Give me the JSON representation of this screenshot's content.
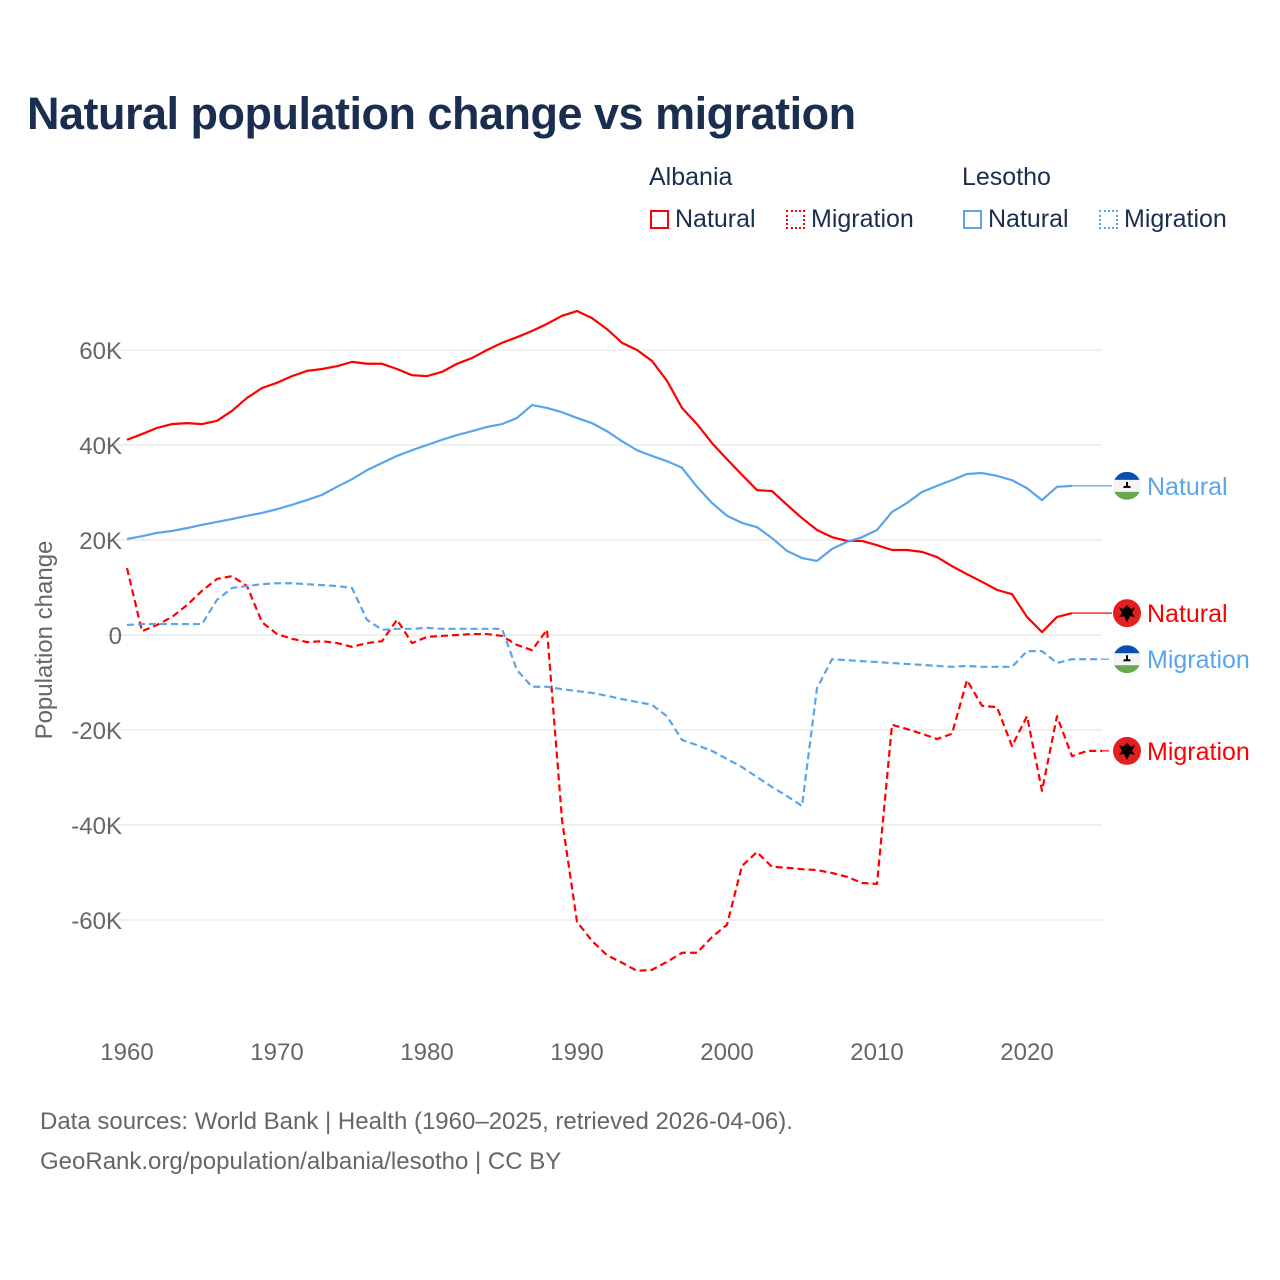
{
  "title": "Natural population change vs migration",
  "legend": {
    "groups": [
      {
        "name": "Albania",
        "items": [
          {
            "label": "Natural",
            "style": "solid",
            "color": "#ff0000"
          },
          {
            "label": "Migration",
            "style": "dotted",
            "color": "#ff0000"
          }
        ]
      },
      {
        "name": "Lesotho",
        "items": [
          {
            "label": "Natural",
            "style": "solid",
            "color": "#5aa5ea"
          },
          {
            "label": "Migration",
            "style": "dotted",
            "color": "#5aa5ea"
          }
        ]
      }
    ]
  },
  "footer": {
    "line1": "Data sources: World Bank | Health (1960–2025, retrieved 2026-04-06).",
    "line2": "GeoRank.org/population/albania/lesotho | CC BY"
  },
  "chart_data": {
    "type": "line",
    "title": "Natural population change vs migration",
    "xlabel": "",
    "ylabel": "Population change",
    "xlim": [
      1960,
      2025
    ],
    "ylim": [
      -80000,
      75000
    ],
    "x_ticks": [
      {
        "value": 1960,
        "label": "1960"
      },
      {
        "value": 1970,
        "label": "1970"
      },
      {
        "value": 1980,
        "label": "1980"
      },
      {
        "value": 1990,
        "label": "1990"
      },
      {
        "value": 2000,
        "label": "2000"
      },
      {
        "value": 2010,
        "label": "2010"
      },
      {
        "value": 2020,
        "label": "2020"
      }
    ],
    "y_ticks": [
      {
        "value": 60000,
        "label": "60K"
      },
      {
        "value": 40000,
        "label": "40K"
      },
      {
        "value": 20000,
        "label": "20K"
      },
      {
        "value": 0,
        "label": "0"
      },
      {
        "value": -20000,
        "label": "-20K"
      },
      {
        "value": -40000,
        "label": "-40K"
      },
      {
        "value": -60000,
        "label": "-60K"
      }
    ],
    "grid": true,
    "start_year": 1960,
    "series": [
      {
        "name": "Albania Natural",
        "country": "Albania",
        "end_label": "Natural",
        "color": "#ff0000",
        "dash": false,
        "flag": "albania",
        "values": [
          41.1,
          42.3,
          43.6,
          44.4,
          44.6,
          44.4,
          45.1,
          47.2,
          49.9,
          52.0,
          53.1,
          54.5,
          55.6,
          56.0,
          56.6,
          57.5,
          57.1,
          57.1,
          56.0,
          54.7,
          54.5,
          55.4,
          57.1,
          58.3,
          60.0,
          61.5,
          62.7,
          64.0,
          65.5,
          67.2,
          68.2,
          66.7,
          64.4,
          61.5,
          60.0,
          57.7,
          53.5,
          47.8,
          44.4,
          40.4,
          37.0,
          33.7,
          30.5,
          30.3,
          27.4,
          24.6,
          22.1,
          20.6,
          19.8,
          19.8,
          18.9,
          17.9,
          17.9,
          17.5,
          16.4,
          14.5,
          12.8,
          11.2,
          9.5,
          8.6,
          3.8,
          0.6,
          3.8,
          4.6
        ]
      },
      {
        "name": "Albania Migration",
        "country": "Albania",
        "end_label": "Migration",
        "color": "#ff0000",
        "dash": true,
        "flag": "albania",
        "values": [
          14.1,
          0.8,
          2.1,
          3.8,
          6.3,
          9.3,
          11.8,
          12.4,
          10.3,
          2.7,
          0.2,
          -0.8,
          -1.5,
          -1.3,
          -1.7,
          -2.5,
          -1.7,
          -1.3,
          3.2,
          -1.7,
          -0.4,
          -0.2,
          0.0,
          0.2,
          0.2,
          -0.2,
          -2.1,
          -3.2,
          1.1,
          -38.9,
          -60.4,
          -64.4,
          -67.4,
          -69.0,
          -70.7,
          -70.5,
          -68.8,
          -66.9,
          -66.9,
          -63.6,
          -61.0,
          -48.6,
          -45.7,
          -48.8,
          -49.0,
          -49.3,
          -49.5,
          -50.1,
          -50.9,
          -52.2,
          -52.4,
          -18.9,
          -19.8,
          -20.8,
          -21.9,
          -20.8,
          -9.5,
          -14.9,
          -15.2,
          -23.4,
          -17.1,
          -32.8,
          -17.1,
          -25.5,
          -24.4,
          -24.4
        ]
      },
      {
        "name": "Lesotho Natural",
        "country": "Lesotho",
        "end_label": "Natural",
        "color": "#5aa5ea",
        "dash": false,
        "flag": "lesotho",
        "values": [
          20.2,
          20.8,
          21.5,
          21.9,
          22.5,
          23.2,
          23.8,
          24.4,
          25.1,
          25.7,
          26.5,
          27.4,
          28.4,
          29.5,
          31.2,
          32.8,
          34.7,
          36.2,
          37.7,
          38.9,
          40.0,
          41.1,
          42.1,
          42.9,
          43.8,
          44.4,
          45.7,
          48.4,
          47.8,
          46.9,
          45.7,
          44.6,
          42.9,
          40.8,
          38.9,
          37.7,
          36.6,
          35.2,
          31.2,
          27.8,
          25.1,
          23.6,
          22.7,
          20.4,
          17.7,
          16.2,
          15.6,
          18.1,
          19.6,
          20.6,
          22.1,
          25.9,
          27.8,
          30.1,
          31.4,
          32.6,
          33.9,
          34.1,
          33.5,
          32.6,
          30.9,
          28.4,
          31.2,
          31.4
        ]
      },
      {
        "name": "Lesotho Migration",
        "country": "Lesotho",
        "end_label": "Migration",
        "color": "#5aa5ea",
        "dash": true,
        "flag": "lesotho",
        "values": [
          2.1,
          2.3,
          2.3,
          2.3,
          2.3,
          2.3,
          7.4,
          9.9,
          10.3,
          10.7,
          10.9,
          10.9,
          10.7,
          10.5,
          10.3,
          9.9,
          3.2,
          1.1,
          1.3,
          1.3,
          1.5,
          1.3,
          1.3,
          1.3,
          1.3,
          1.3,
          -7.4,
          -10.9,
          -10.9,
          -11.4,
          -11.8,
          -12.2,
          -12.8,
          -13.5,
          -14.1,
          -14.7,
          -17.1,
          -22.1,
          -23.2,
          -24.4,
          -26.1,
          -27.8,
          -29.9,
          -32.0,
          -33.9,
          -36.0,
          -11.2,
          -5.1,
          -5.3,
          -5.5,
          -5.7,
          -5.9,
          -6.1,
          -6.3,
          -6.5,
          -6.7,
          -6.5,
          -6.7,
          -6.7,
          -6.7,
          -3.4,
          -3.4,
          -5.9,
          -5.1,
          -5.1,
          -5.1
        ]
      }
    ],
    "value_unit": "thousands"
  }
}
